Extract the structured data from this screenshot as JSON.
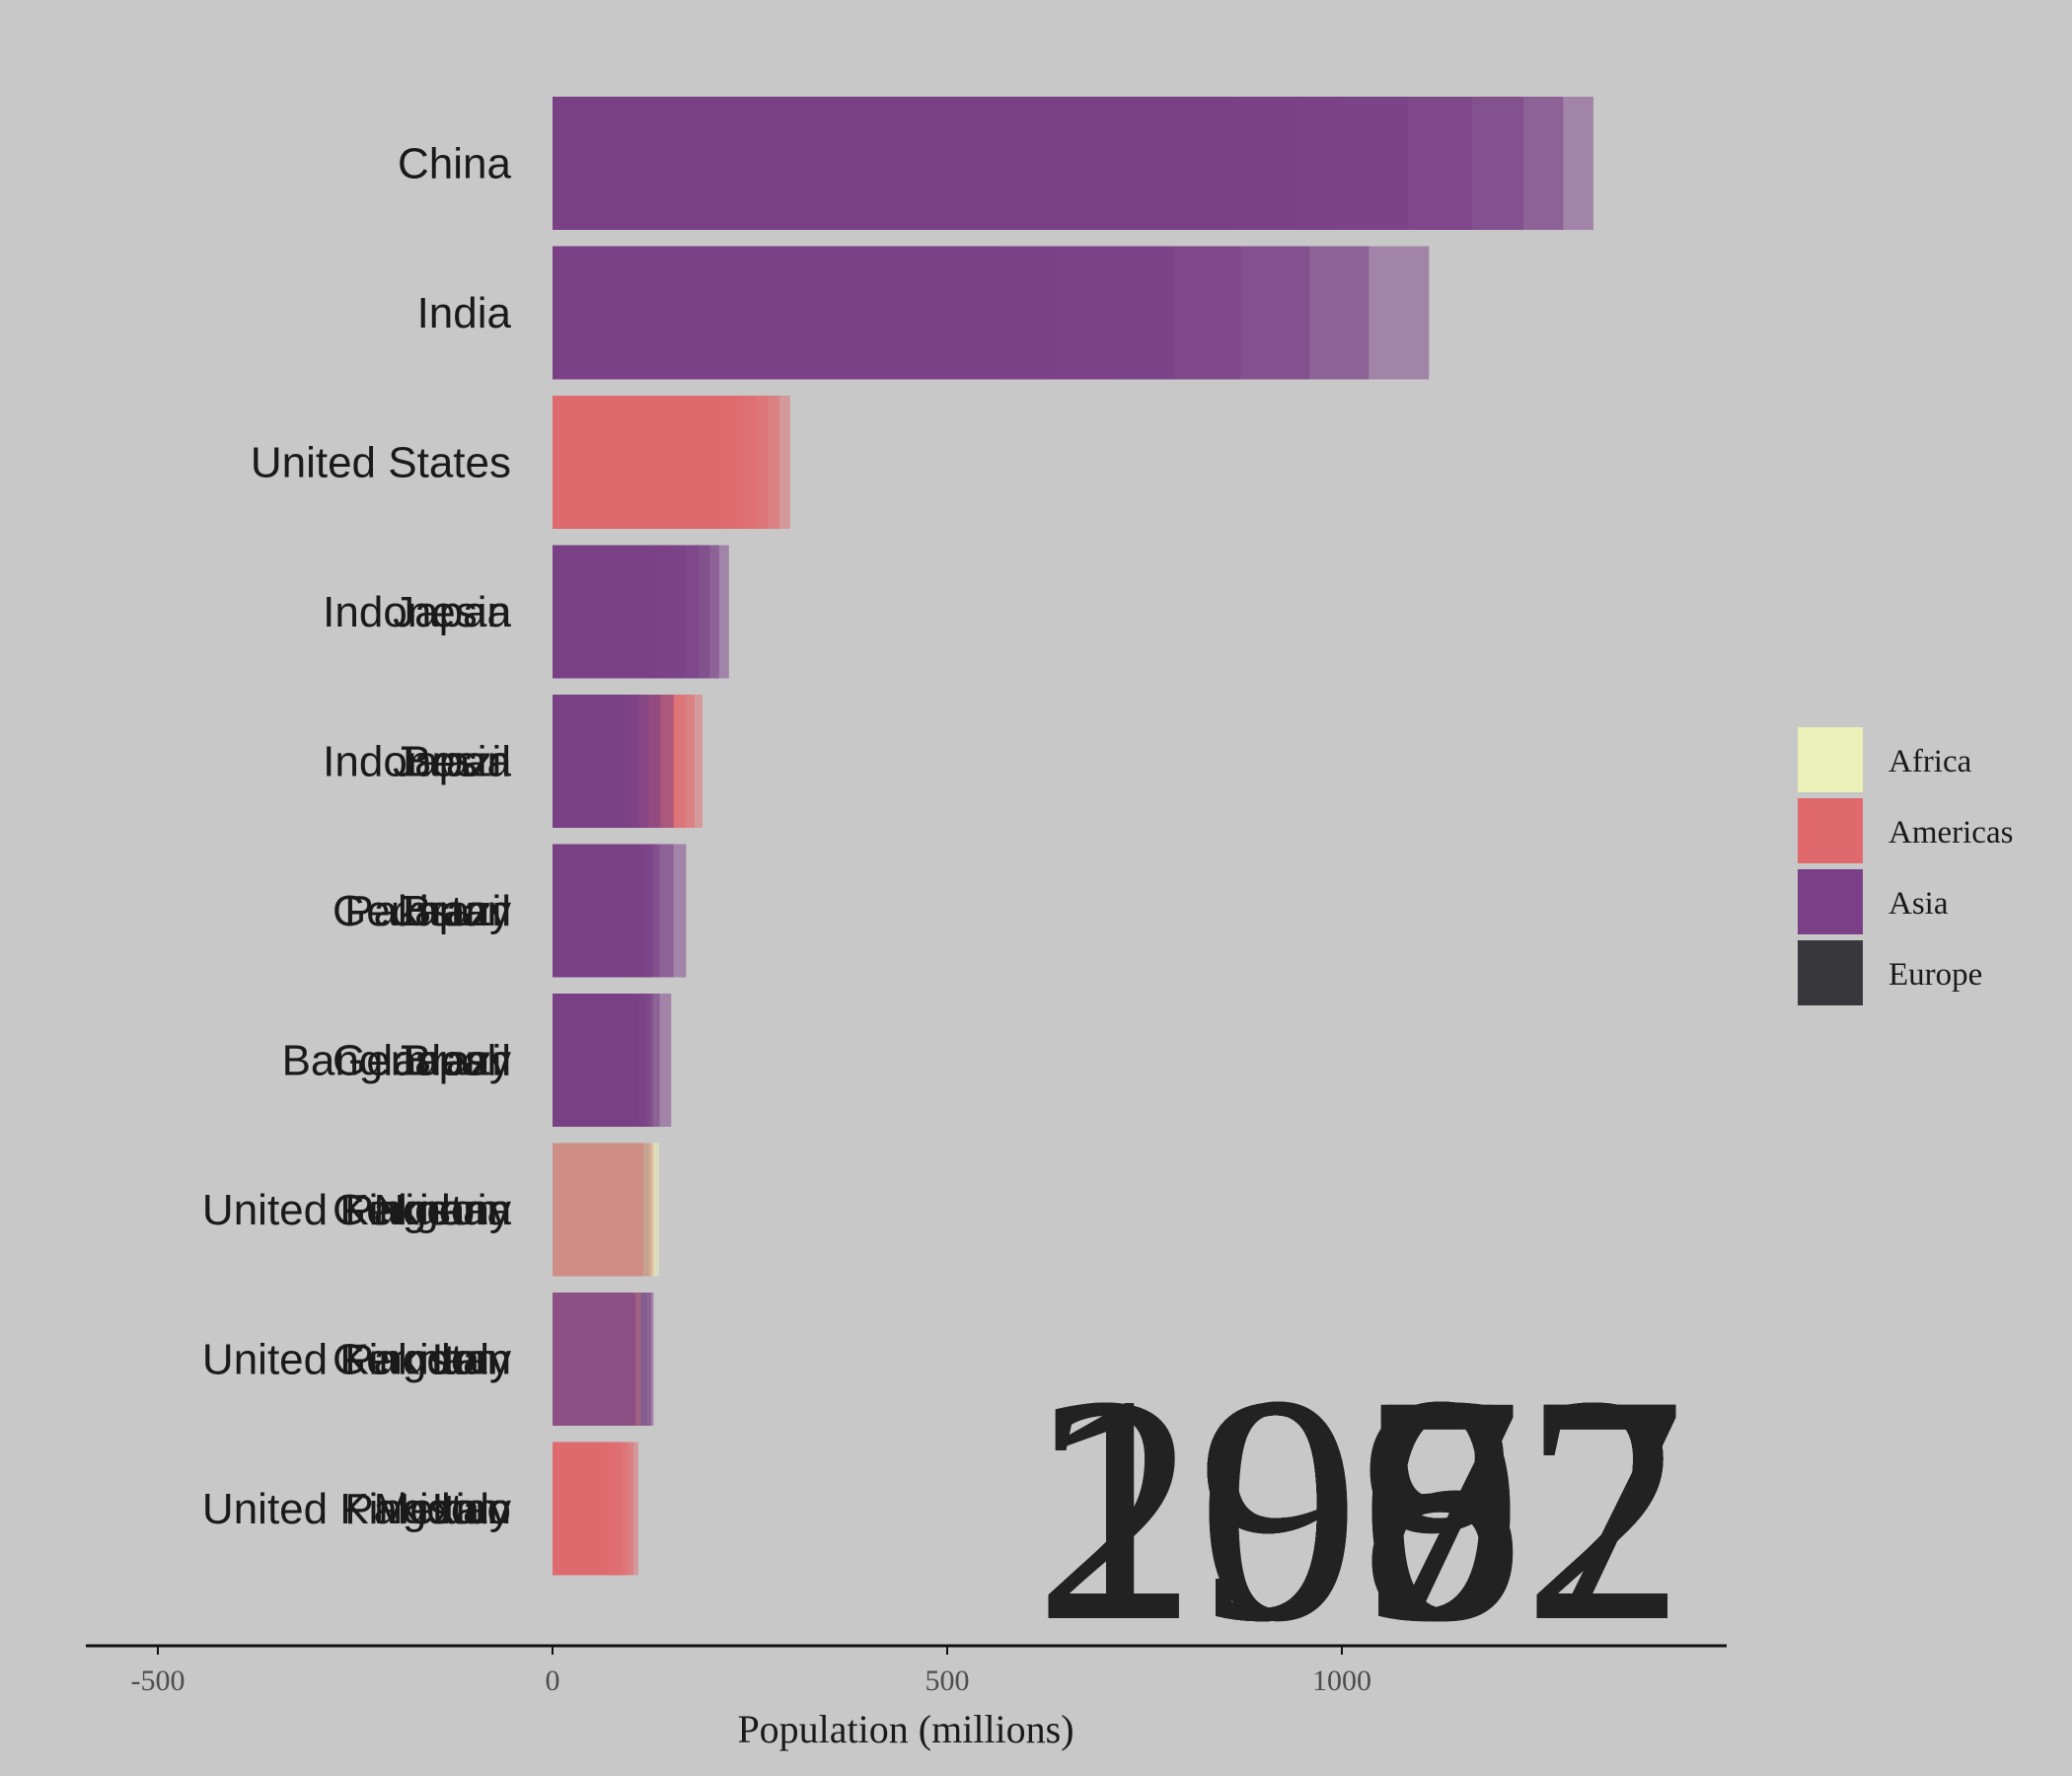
{
  "chart_data": {
    "type": "bar",
    "orientation": "horizontal",
    "animation_frames_overlaid": true,
    "title": "",
    "xlabel": "Population (millions)",
    "ylabel": "",
    "xlim": [
      -500,
      1500
    ],
    "x_ticks": [
      -500,
      0,
      500,
      1000
    ],
    "x_tick_labels": [
      "-500",
      "0",
      "500",
      "1000"
    ],
    "legend_position": "right",
    "legend": [
      {
        "name": "Africa",
        "color": "#ebefb8"
      },
      {
        "name": "Americas",
        "color": "#e0696e"
      },
      {
        "name": "Asia",
        "color": "#7a3f86"
      },
      {
        "name": "Europe",
        "color": "#38383c"
      }
    ],
    "year_labels": [
      "1952",
      "1957",
      "1962",
      "1967",
      "1972",
      "1977",
      "1982",
      "1987",
      "1992",
      "1997",
      "2002",
      "2007"
    ],
    "ranks": [
      {
        "labels": [
          "China"
        ],
        "bars": [
          {
            "continent": "Asia",
            "value": 1318.7,
            "opacity": 0.5
          },
          {
            "continent": "Asia",
            "value": 1280.4,
            "opacity": 0.5
          },
          {
            "continent": "Asia",
            "value": 1230.1,
            "opacity": 0.5
          },
          {
            "continent": "Asia",
            "value": 1164.97,
            "opacity": 0.5
          },
          {
            "continent": "Asia",
            "value": 1084.04,
            "opacity": 0.5
          },
          {
            "continent": "Asia",
            "value": 1000.28,
            "opacity": 0.5
          },
          {
            "continent": "Asia",
            "value": 943.46,
            "opacity": 0.5
          },
          {
            "continent": "Asia",
            "value": 862.03,
            "opacity": 0.5
          },
          {
            "continent": "Asia",
            "value": 754.55,
            "opacity": 0.5
          },
          {
            "continent": "Asia",
            "value": 665.77,
            "opacity": 0.5
          },
          {
            "continent": "Asia",
            "value": 637.41,
            "opacity": 0.5
          },
          {
            "continent": "Asia",
            "value": 556.26,
            "opacity": 0.5
          }
        ]
      },
      {
        "labels": [
          "India"
        ],
        "bars": [
          {
            "continent": "Asia",
            "value": 1110.4,
            "opacity": 0.5
          },
          {
            "continent": "Asia",
            "value": 1034.2,
            "opacity": 0.5
          },
          {
            "continent": "Asia",
            "value": 959.0,
            "opacity": 0.5
          },
          {
            "continent": "Asia",
            "value": 872.0,
            "opacity": 0.5
          },
          {
            "continent": "Asia",
            "value": 788.0,
            "opacity": 0.5
          },
          {
            "continent": "Asia",
            "value": 708.0,
            "opacity": 0.5
          },
          {
            "continent": "Asia",
            "value": 634.0,
            "opacity": 0.5
          },
          {
            "continent": "Asia",
            "value": 567.0,
            "opacity": 0.5
          },
          {
            "continent": "Asia",
            "value": 506.0,
            "opacity": 0.5
          },
          {
            "continent": "Asia",
            "value": 454.0,
            "opacity": 0.5
          },
          {
            "continent": "Asia",
            "value": 409.0,
            "opacity": 0.5
          },
          {
            "continent": "Asia",
            "value": 372.0,
            "opacity": 0.5
          }
        ]
      },
      {
        "labels": [
          "United States"
        ],
        "bars": [
          {
            "continent": "Americas",
            "value": 301.1,
            "opacity": 0.5
          },
          {
            "continent": "Americas",
            "value": 287.7,
            "opacity": 0.5
          },
          {
            "continent": "Americas",
            "value": 272.9,
            "opacity": 0.5
          },
          {
            "continent": "Americas",
            "value": 256.9,
            "opacity": 0.5
          },
          {
            "continent": "Americas",
            "value": 242.8,
            "opacity": 0.5
          },
          {
            "continent": "Americas",
            "value": 232.2,
            "opacity": 0.5
          },
          {
            "continent": "Americas",
            "value": 220.2,
            "opacity": 0.5
          },
          {
            "continent": "Americas",
            "value": 209.9,
            "opacity": 0.5
          },
          {
            "continent": "Americas",
            "value": 198.7,
            "opacity": 0.5
          },
          {
            "continent": "Americas",
            "value": 186.5,
            "opacity": 0.5
          },
          {
            "continent": "Americas",
            "value": 171.98,
            "opacity": 0.5
          },
          {
            "continent": "Americas",
            "value": 157.55,
            "opacity": 0.5
          }
        ]
      },
      {
        "labels": [
          "Indonesia",
          "Japan"
        ],
        "bars": [
          {
            "continent": "Asia",
            "value": 223.5,
            "opacity": 0.5
          },
          {
            "continent": "Asia",
            "value": 211.1,
            "opacity": 0.5
          },
          {
            "continent": "Asia",
            "value": 199.3,
            "opacity": 0.5
          },
          {
            "continent": "Asia",
            "value": 184.8,
            "opacity": 0.5
          },
          {
            "continent": "Asia",
            "value": 169.3,
            "opacity": 0.5
          },
          {
            "continent": "Asia",
            "value": 153.3,
            "opacity": 0.5
          },
          {
            "continent": "Asia",
            "value": 136.7,
            "opacity": 0.5
          },
          {
            "continent": "Asia",
            "value": 121.3,
            "opacity": 0.5
          },
          {
            "continent": "Asia",
            "value": 109.3,
            "opacity": 0.5
          },
          {
            "continent": "Asia",
            "value": 100.8,
            "opacity": 0.5
          },
          {
            "continent": "Asia",
            "value": 91.1,
            "opacity": 0.5
          },
          {
            "continent": "Asia",
            "value": 86.5,
            "opacity": 0.5
          }
        ]
      },
      {
        "labels": [
          "Indonesia",
          "Japan",
          "Brazil"
        ],
        "bars": [
          {
            "continent": "Americas",
            "value": 190.0,
            "opacity": 0.5
          },
          {
            "continent": "Americas",
            "value": 179.9,
            "opacity": 0.5
          },
          {
            "continent": "Americas",
            "value": 168.5,
            "opacity": 0.5
          },
          {
            "continent": "Americas",
            "value": 155.9,
            "opacity": 0.5
          },
          {
            "continent": "Asia",
            "value": 153.3,
            "opacity": 0.5
          },
          {
            "continent": "Asia",
            "value": 136.7,
            "opacity": 0.5
          },
          {
            "continent": "Asia",
            "value": 121.3,
            "opacity": 0.5
          },
          {
            "continent": "Asia",
            "value": 109.3,
            "opacity": 0.5
          },
          {
            "continent": "Asia",
            "value": 100.8,
            "opacity": 0.5
          },
          {
            "continent": "Asia",
            "value": 95.8,
            "opacity": 0.5
          },
          {
            "continent": "Asia",
            "value": 89.8,
            "opacity": 0.5
          },
          {
            "continent": "Asia",
            "value": 82.1,
            "opacity": 0.5
          }
        ]
      },
      {
        "labels": [
          "Germany",
          "Pakistan",
          "Brazil",
          "Japan"
        ],
        "bars": [
          {
            "continent": "Asia",
            "value": 169.3,
            "opacity": 0.5
          },
          {
            "continent": "Asia",
            "value": 153.4,
            "opacity": 0.5
          },
          {
            "continent": "Asia",
            "value": 135.6,
            "opacity": 0.5
          },
          {
            "continent": "Asia",
            "value": 128.0,
            "opacity": 0.5
          },
          {
            "continent": "Asia",
            "value": 124.3,
            "opacity": 0.5
          },
          {
            "continent": "Asia",
            "value": 118.5,
            "opacity": 0.5
          },
          {
            "continent": "Asia",
            "value": 113.0,
            "opacity": 0.5
          },
          {
            "continent": "Asia",
            "value": 107.2,
            "opacity": 0.5
          },
          {
            "continent": "Asia",
            "value": 101.0,
            "opacity": 0.5
          },
          {
            "continent": "Asia",
            "value": 95.8,
            "opacity": 0.5
          },
          {
            "continent": "Asia",
            "value": 89.8,
            "opacity": 0.5
          },
          {
            "continent": "Asia",
            "value": 86.5,
            "opacity": 0.5
          }
        ]
      },
      {
        "labels": [
          "Bangladesh",
          "Germany",
          "Brazil",
          "Japan"
        ],
        "bars": [
          {
            "continent": "Asia",
            "value": 150.4,
            "opacity": 0.5
          },
          {
            "continent": "Asia",
            "value": 135.7,
            "opacity": 0.5
          },
          {
            "continent": "Asia",
            "value": 127.4,
            "opacity": 0.5
          },
          {
            "continent": "Asia",
            "value": 123.5,
            "opacity": 0.5
          },
          {
            "continent": "Asia",
            "value": 118.5,
            "opacity": 0.5
          },
          {
            "continent": "Asia",
            "value": 113.0,
            "opacity": 0.5
          },
          {
            "continent": "Asia",
            "value": 107.2,
            "opacity": 0.5
          },
          {
            "continent": "Asia",
            "value": 101.0,
            "opacity": 0.5
          },
          {
            "continent": "Asia",
            "value": 95.8,
            "opacity": 0.5
          },
          {
            "continent": "Asia",
            "value": 89.8,
            "opacity": 0.5
          },
          {
            "continent": "Asia",
            "value": 86.5,
            "opacity": 0.5
          },
          {
            "continent": "Asia",
            "value": 82.1,
            "opacity": 0.5
          }
        ]
      },
      {
        "labels": [
          "United Kingdom",
          "Pakistan",
          "Germany",
          "Nigeria"
        ],
        "bars": [
          {
            "continent": "Africa",
            "value": 135.0,
            "opacity": 0.5
          },
          {
            "continent": "Africa",
            "value": 130.0,
            "opacity": 0.5
          },
          {
            "continent": "Americas",
            "value": 128.0,
            "opacity": 0.35
          },
          {
            "continent": "Europe",
            "value": 125.0,
            "opacity": 0.1
          },
          {
            "continent": "Asia",
            "value": 122.0,
            "opacity": 0.1
          },
          {
            "continent": "Americas",
            "value": 115.0,
            "opacity": 0.35
          }
        ]
      },
      {
        "labels": [
          "United Kingdom",
          "Pakistan",
          "Germany",
          "Italy"
        ],
        "bars": [
          {
            "continent": "Asia",
            "value": 128.0,
            "opacity": 0.5
          },
          {
            "continent": "Asia",
            "value": 125.0,
            "opacity": 0.5
          },
          {
            "continent": "Europe",
            "value": 120.0,
            "opacity": 0.1
          },
          {
            "continent": "Americas",
            "value": 112.0,
            "opacity": 0.3
          },
          {
            "continent": "Asia",
            "value": 105.0,
            "opacity": 0.5
          }
        ]
      },
      {
        "labels": [
          "United Kingdom",
          "Pakistan",
          "Mexico",
          "Italy"
        ],
        "bars": [
          {
            "continent": "Americas",
            "value": 108.7,
            "opacity": 0.5
          },
          {
            "continent": "Americas",
            "value": 102.5,
            "opacity": 0.5
          },
          {
            "continent": "Americas",
            "value": 95.6,
            "opacity": 0.5
          },
          {
            "continent": "Americas",
            "value": 88.1,
            "opacity": 0.5
          },
          {
            "continent": "Americas",
            "value": 80.1,
            "opacity": 0.5
          },
          {
            "continent": "Americas",
            "value": 71.6,
            "opacity": 0.5
          },
          {
            "continent": "Americas",
            "value": 63.8,
            "opacity": 0.5
          },
          {
            "continent": "Americas",
            "value": 56.2,
            "opacity": 0.5
          }
        ]
      }
    ]
  }
}
